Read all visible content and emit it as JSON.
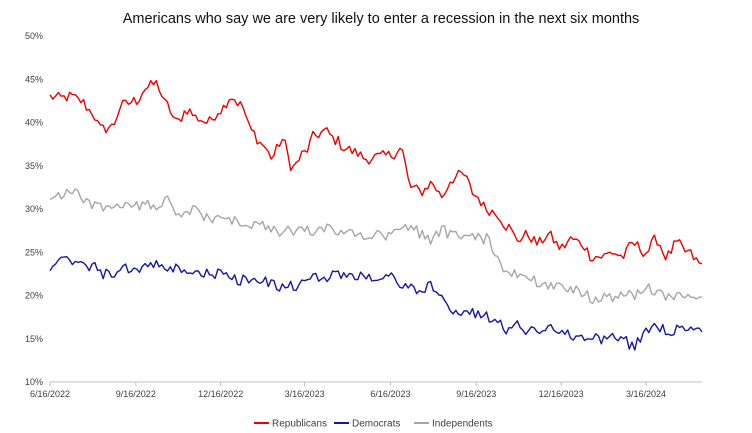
{
  "chart_data": {
    "type": "line",
    "title": "Americans who say we are very likely to enter a recession in the next six months",
    "xlabel": "",
    "ylabel": "",
    "x_range": [
      "2022-06-16",
      "2024-05-15"
    ],
    "x_ticks": [
      "6/16/2022",
      "9/16/2022",
      "12/16/2022",
      "3/16/2023",
      "6/16/2023",
      "9/16/2023",
      "12/16/2023",
      "3/16/2024"
    ],
    "x_tick_dates": [
      "2022-06-16",
      "2022-09-16",
      "2022-12-16",
      "2023-03-16",
      "2023-06-16",
      "2023-09-16",
      "2023-12-16",
      "2024-03-16"
    ],
    "ylim": [
      10,
      50
    ],
    "y_ticks": [
      "10%",
      "15%",
      "20%",
      "25%",
      "30%",
      "35%",
      "40%",
      "45%",
      "50%"
    ],
    "y_tick_values": [
      10,
      15,
      20,
      25,
      30,
      35,
      40,
      45,
      50
    ],
    "grid": false,
    "legend_position": "bottom",
    "series": [
      {
        "name": "Republicans",
        "color": "#ee0000",
        "points": [
          [
            "2022-06-16",
            43.0
          ],
          [
            "2022-06-27",
            42.8
          ],
          [
            "2022-07-08",
            43.0
          ],
          [
            "2022-07-19",
            42.5
          ],
          [
            "2022-07-30",
            41.3
          ],
          [
            "2022-08-10",
            39.2
          ],
          [
            "2022-08-21",
            39.5
          ],
          [
            "2022-09-01",
            42.0
          ],
          [
            "2022-09-16",
            42.5
          ],
          [
            "2022-09-27",
            44.0
          ],
          [
            "2022-10-08",
            44.5
          ],
          [
            "2022-10-19",
            42.0
          ],
          [
            "2022-10-30",
            40.0
          ],
          [
            "2022-11-10",
            41.5
          ],
          [
            "2022-11-21",
            40.5
          ],
          [
            "2022-12-02",
            40.0
          ],
          [
            "2022-12-16",
            41.5
          ],
          [
            "2022-12-27",
            43.0
          ],
          [
            "2023-01-07",
            42.0
          ],
          [
            "2023-01-18",
            39.0
          ],
          [
            "2023-01-29",
            37.5
          ],
          [
            "2023-02-09",
            36.0
          ],
          [
            "2023-02-20",
            38.0
          ],
          [
            "2023-03-03",
            34.8
          ],
          [
            "2023-03-16",
            36.5
          ],
          [
            "2023-03-27",
            38.5
          ],
          [
            "2023-04-07",
            39.0
          ],
          [
            "2023-04-18",
            38.0
          ],
          [
            "2023-04-29",
            37.0
          ],
          [
            "2023-05-10",
            36.5
          ],
          [
            "2023-05-21",
            35.8
          ],
          [
            "2023-06-01",
            36.0
          ],
          [
            "2023-06-16",
            36.2
          ],
          [
            "2023-06-27",
            37.0
          ],
          [
            "2023-07-08",
            32.5
          ],
          [
            "2023-07-19",
            32.0
          ],
          [
            "2023-07-30",
            33.0
          ],
          [
            "2023-08-10",
            31.5
          ],
          [
            "2023-08-21",
            33.5
          ],
          [
            "2023-09-01",
            34.0
          ],
          [
            "2023-09-16",
            31.5
          ],
          [
            "2023-09-27",
            30.0
          ],
          [
            "2023-10-08",
            29.5
          ],
          [
            "2023-10-19",
            28.0
          ],
          [
            "2023-10-30",
            26.5
          ],
          [
            "2023-11-10",
            27.0
          ],
          [
            "2023-11-21",
            26.0
          ],
          [
            "2023-12-02",
            27.0
          ],
          [
            "2023-12-16",
            25.5
          ],
          [
            "2023-12-27",
            26.5
          ],
          [
            "2024-01-07",
            26.0
          ],
          [
            "2024-01-18",
            24.5
          ],
          [
            "2024-01-29",
            24.5
          ],
          [
            "2024-02-09",
            25.0
          ],
          [
            "2024-02-20",
            24.5
          ],
          [
            "2024-03-02",
            26.0
          ],
          [
            "2024-03-16",
            25.0
          ],
          [
            "2024-03-27",
            26.5
          ],
          [
            "2024-04-07",
            24.5
          ],
          [
            "2024-04-18",
            26.0
          ],
          [
            "2024-04-29",
            25.0
          ],
          [
            "2024-05-15",
            23.5
          ]
        ]
      },
      {
        "name": "Democrats",
        "color": "#1515a8",
        "points": [
          [
            "2022-06-16",
            23.5
          ],
          [
            "2022-06-27",
            23.8
          ],
          [
            "2022-07-08",
            24.0
          ],
          [
            "2022-07-19",
            23.5
          ],
          [
            "2022-07-30",
            23.5
          ],
          [
            "2022-08-10",
            22.5
          ],
          [
            "2022-08-21",
            22.5
          ],
          [
            "2022-09-01",
            23.0
          ],
          [
            "2022-09-16",
            23.0
          ],
          [
            "2022-09-27",
            23.5
          ],
          [
            "2022-10-08",
            23.5
          ],
          [
            "2022-10-19",
            23.0
          ],
          [
            "2022-10-30",
            23.0
          ],
          [
            "2022-11-10",
            23.0
          ],
          [
            "2022-11-21",
            22.5
          ],
          [
            "2022-12-02",
            22.5
          ],
          [
            "2022-12-16",
            22.5
          ],
          [
            "2022-12-27",
            22.0
          ],
          [
            "2023-01-07",
            21.8
          ],
          [
            "2023-01-18",
            21.8
          ],
          [
            "2023-01-29",
            21.5
          ],
          [
            "2023-02-09",
            21.5
          ],
          [
            "2023-02-20",
            21.0
          ],
          [
            "2023-03-03",
            21.0
          ],
          [
            "2023-03-16",
            21.5
          ],
          [
            "2023-03-27",
            22.0
          ],
          [
            "2023-04-07",
            22.2
          ],
          [
            "2023-04-18",
            22.5
          ],
          [
            "2023-04-29",
            22.5
          ],
          [
            "2023-05-10",
            22.0
          ],
          [
            "2023-05-21",
            22.5
          ],
          [
            "2023-06-01",
            22.0
          ],
          [
            "2023-06-16",
            22.0
          ],
          [
            "2023-06-27",
            21.5
          ],
          [
            "2023-07-08",
            21.0
          ],
          [
            "2023-07-19",
            20.5
          ],
          [
            "2023-07-30",
            21.0
          ],
          [
            "2023-08-10",
            19.5
          ],
          [
            "2023-08-21",
            18.5
          ],
          [
            "2023-09-01",
            18.0
          ],
          [
            "2023-09-16",
            18.0
          ],
          [
            "2023-09-27",
            17.5
          ],
          [
            "2023-10-08",
            17.5
          ],
          [
            "2023-10-19",
            16.0
          ],
          [
            "2023-10-30",
            16.5
          ],
          [
            "2023-11-10",
            16.0
          ],
          [
            "2023-11-21",
            16.0
          ],
          [
            "2023-12-02",
            16.5
          ],
          [
            "2023-12-16",
            15.5
          ],
          [
            "2023-12-27",
            15.5
          ],
          [
            "2024-01-07",
            15.0
          ],
          [
            "2024-01-18",
            15.0
          ],
          [
            "2024-01-29",
            15.0
          ],
          [
            "2024-02-09",
            15.0
          ],
          [
            "2024-02-20",
            15.2
          ],
          [
            "2024-03-02",
            14.0
          ],
          [
            "2024-03-16",
            16.0
          ],
          [
            "2024-03-27",
            16.5
          ],
          [
            "2024-04-07",
            16.0
          ],
          [
            "2024-04-18",
            16.0
          ],
          [
            "2024-04-29",
            16.2
          ],
          [
            "2024-05-15",
            15.8
          ]
        ]
      },
      {
        "name": "Independents",
        "color": "#a6a6a6",
        "points": [
          [
            "2022-06-16",
            31.3
          ],
          [
            "2022-06-27",
            31.5
          ],
          [
            "2022-07-08",
            32.0
          ],
          [
            "2022-07-19",
            31.5
          ],
          [
            "2022-07-30",
            30.5
          ],
          [
            "2022-08-10",
            30.0
          ],
          [
            "2022-08-21",
            30.5
          ],
          [
            "2022-09-01",
            30.5
          ],
          [
            "2022-09-16",
            30.5
          ],
          [
            "2022-09-27",
            30.5
          ],
          [
            "2022-10-08",
            30.5
          ],
          [
            "2022-10-19",
            31.0
          ],
          [
            "2022-10-30",
            29.0
          ],
          [
            "2022-11-10",
            29.5
          ],
          [
            "2022-11-21",
            30.0
          ],
          [
            "2022-12-02",
            29.0
          ],
          [
            "2022-12-16",
            28.8
          ],
          [
            "2022-12-27",
            28.5
          ],
          [
            "2023-01-07",
            28.5
          ],
          [
            "2023-01-18",
            28.0
          ],
          [
            "2023-01-29",
            28.0
          ],
          [
            "2023-02-09",
            27.5
          ],
          [
            "2023-02-20",
            27.5
          ],
          [
            "2023-03-03",
            27.5
          ],
          [
            "2023-03-16",
            27.5
          ],
          [
            "2023-03-27",
            27.5
          ],
          [
            "2023-04-07",
            27.8
          ],
          [
            "2023-04-18",
            27.5
          ],
          [
            "2023-04-29",
            27.0
          ],
          [
            "2023-05-10",
            27.5
          ],
          [
            "2023-05-21",
            27.0
          ],
          [
            "2023-06-01",
            27.0
          ],
          [
            "2023-06-16",
            27.0
          ],
          [
            "2023-06-27",
            27.5
          ],
          [
            "2023-07-08",
            28.0
          ],
          [
            "2023-07-19",
            27.0
          ],
          [
            "2023-07-30",
            26.5
          ],
          [
            "2023-08-10",
            27.5
          ],
          [
            "2023-08-21",
            27.0
          ],
          [
            "2023-09-01",
            27.0
          ],
          [
            "2023-09-16",
            27.0
          ],
          [
            "2023-09-27",
            26.5
          ],
          [
            "2023-10-08",
            24.0
          ],
          [
            "2023-10-19",
            22.5
          ],
          [
            "2023-10-30",
            22.5
          ],
          [
            "2023-11-10",
            22.5
          ],
          [
            "2023-11-21",
            21.5
          ],
          [
            "2023-12-02",
            21.0
          ],
          [
            "2023-12-16",
            21.0
          ],
          [
            "2023-12-27",
            20.5
          ],
          [
            "2024-01-07",
            20.5
          ],
          [
            "2024-01-18",
            19.5
          ],
          [
            "2024-01-29",
            20.0
          ],
          [
            "2024-02-09",
            19.5
          ],
          [
            "2024-02-20",
            20.0
          ],
          [
            "2024-03-02",
            20.0
          ],
          [
            "2024-03-16",
            21.0
          ],
          [
            "2024-03-27",
            20.0
          ],
          [
            "2024-04-07",
            20.0
          ],
          [
            "2024-04-18",
            19.8
          ],
          [
            "2024-04-29",
            20.0
          ],
          [
            "2024-05-15",
            19.3
          ]
        ]
      }
    ]
  }
}
